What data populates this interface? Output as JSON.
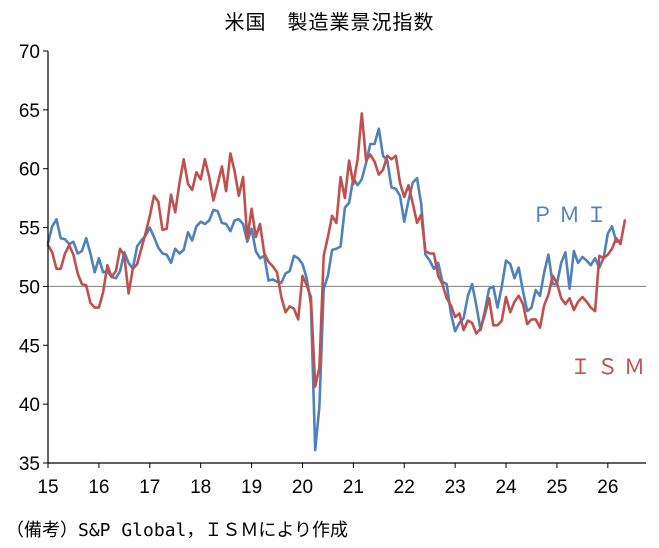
{
  "chart_data": {
    "type": "line",
    "title": "米国　製造業景況指数",
    "source": "（備考）S&P Global，ＩＳＭにより作成",
    "ylim": [
      35,
      70
    ],
    "yticks": [
      35,
      40,
      45,
      50,
      55,
      60,
      65,
      70
    ],
    "xlim": [
      2015.0,
      2026.75
    ],
    "xticks": [
      {
        "label": "15",
        "value": 2015.0
      },
      {
        "label": "16",
        "value": 2016.0
      },
      {
        "label": "17",
        "value": 2017.0
      },
      {
        "label": "18",
        "value": 2018.0
      },
      {
        "label": "19",
        "value": 2019.0
      },
      {
        "label": "20",
        "value": 2020.0
      },
      {
        "label": "21",
        "value": 2021.0
      },
      {
        "label": "22",
        "value": 2022.0
      },
      {
        "label": "23",
        "value": 2023.0
      },
      {
        "label": "24",
        "value": 2024.0
      },
      {
        "label": "25",
        "value": 2025.0
      },
      {
        "label": "26",
        "value": 2026.0
      }
    ],
    "reference_line": 50,
    "grid": false,
    "series": [
      {
        "name": "ＰＭＩ",
        "color": "#4f81bd",
        "label_position": "right",
        "start": 2015.0,
        "step": 0.08333,
        "values": [
          53.7,
          55.1,
          55.7,
          54.1,
          54.0,
          53.6,
          53.8,
          52.8,
          53.0,
          54.1,
          52.8,
          51.2,
          52.4,
          51.2,
          51.3,
          50.8,
          50.7,
          51.3,
          52.9,
          52.0,
          51.5,
          53.4,
          53.9,
          54.3,
          55.0,
          54.2,
          53.3,
          52.8,
          52.7,
          52.0,
          53.2,
          52.8,
          53.1,
          54.6,
          53.9,
          55.1,
          55.5,
          55.3,
          55.6,
          56.5,
          56.4,
          55.4,
          55.3,
          54.7,
          55.6,
          55.7,
          55.3,
          53.8,
          54.9,
          53.0,
          52.4,
          52.6,
          50.5,
          50.6,
          50.4,
          50.3,
          51.1,
          51.3,
          52.6,
          52.4,
          51.9,
          50.7,
          48.5,
          36.1,
          39.8,
          49.8,
          50.9,
          53.1,
          53.2,
          53.4,
          56.7,
          57.1,
          59.2,
          58.6,
          59.1,
          60.5,
          62.1,
          62.1,
          63.4,
          61.1,
          60.7,
          58.4,
          58.3,
          57.7,
          55.5,
          57.3,
          58.8,
          59.2,
          57.0,
          52.7,
          52.2,
          51.5,
          52.0,
          50.4,
          50.2,
          47.7,
          46.2,
          46.9,
          47.3,
          49.2,
          50.2,
          48.4,
          46.3,
          47.9,
          49.8,
          50.0,
          48.2,
          50.0,
          52.2,
          51.9,
          50.7,
          51.6,
          49.6,
          47.9,
          48.2,
          49.7,
          49.2,
          51.2,
          52.7,
          50.2,
          50.2,
          52.0,
          52.9,
          49.8,
          53.0,
          52.0,
          52.5,
          52.2,
          51.8,
          52.4,
          51.6,
          52.4,
          54.5,
          55.1,
          53.8,
          53.9
        ]
      },
      {
        "name": "ＩＳＭ",
        "color": "#c0504d",
        "label_position": "bottom-right",
        "start": 2015.0,
        "step": 0.08333,
        "values": [
          53.5,
          52.9,
          51.5,
          51.5,
          52.8,
          53.5,
          52.7,
          51.1,
          50.2,
          50.1,
          48.6,
          48.2,
          48.2,
          49.5,
          51.8,
          50.8,
          51.3,
          53.2,
          52.6,
          49.4,
          51.5,
          51.9,
          53.2,
          54.5,
          56.0,
          57.7,
          57.2,
          54.8,
          54.9,
          57.8,
          56.3,
          58.8,
          60.8,
          58.7,
          58.2,
          59.7,
          59.1,
          60.8,
          59.3,
          57.3,
          58.7,
          60.2,
          58.1,
          61.3,
          59.8,
          57.7,
          59.3,
          54.1,
          56.6,
          54.2,
          55.3,
          52.8,
          52.1,
          51.7,
          51.2,
          49.1,
          47.8,
          48.3,
          48.1,
          47.2,
          50.9,
          50.1,
          49.1,
          41.5,
          43.1,
          52.6,
          54.2,
          56.0,
          55.4,
          59.3,
          57.5,
          60.7,
          58.7,
          60.8,
          64.7,
          60.7,
          61.2,
          60.6,
          59.5,
          59.9,
          61.1,
          60.8,
          61.1,
          58.8,
          57.6,
          58.6,
          57.1,
          55.4,
          56.1,
          53.0,
          52.8,
          52.8,
          50.9,
          50.2,
          49.0,
          48.4,
          47.4,
          47.7,
          46.3,
          47.1,
          46.9,
          46.0,
          46.4,
          47.6,
          49.0,
          46.7,
          46.7,
          47.1,
          49.1,
          47.8,
          48.7,
          49.2,
          48.5,
          46.8,
          47.2,
          47.2,
          46.5,
          48.4,
          49.3,
          50.9,
          50.3,
          49.0,
          48.5,
          49.0,
          48.0,
          48.7,
          49.1,
          48.7,
          48.2,
          47.9,
          52.6,
          52.4,
          52.7,
          53.2,
          54.1,
          53.6,
          55.6
        ]
      }
    ]
  }
}
